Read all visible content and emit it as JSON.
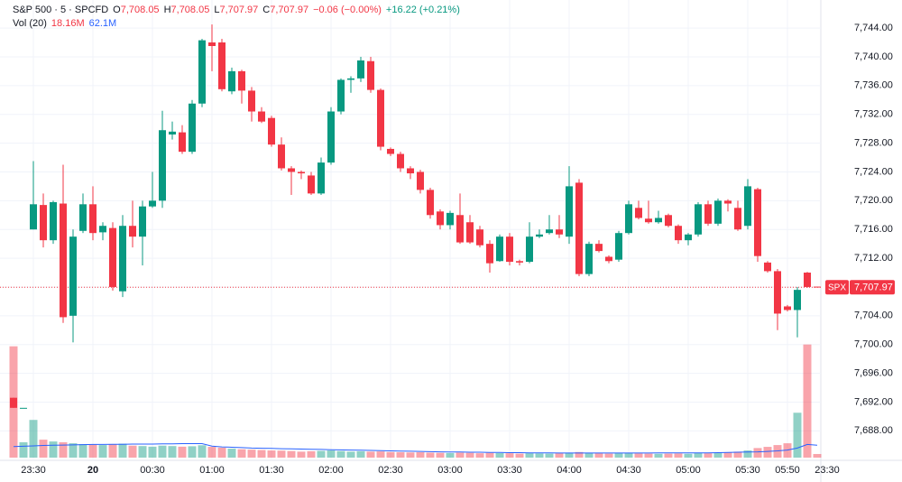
{
  "chart_data": {
    "type": "candlestick",
    "header": {
      "symbol": "S&P 500 · 5 · SPCFD",
      "ohlc": [
        {
          "key": "O",
          "value": "7,708.05"
        },
        {
          "key": "H",
          "value": "7,708.05"
        },
        {
          "key": "L",
          "value": "7,707.97"
        },
        {
          "key": "C",
          "value": "7,707.97"
        }
      ],
      "change": "−0.06 (−0.00%)",
      "change_ext": "+16.22 (+0.21%)",
      "vol_label": "Vol (20)",
      "vol_value": "18.16M",
      "vol_ma": "62.1M"
    },
    "last_price": {
      "symbol": "SPX",
      "value": 7707.97,
      "label": "7,707.97"
    },
    "up_color": "#089981",
    "down_color": "#f23645",
    "open": [
      7692.6,
      7691.2,
      7716,
      7719.4,
      7714.5,
      7719.6,
      7704,
      7715.8,
      7719.5,
      7715.6,
      7716.2,
      7707.4,
      7716.5,
      7715,
      7719.2,
      7720,
      7729.2,
      7729.5,
      7726.8,
      7733.5,
      7742,
      7742,
      7735.2,
      7738,
      7735.3,
      7732.4,
      7731.5,
      7727.8,
      7724.5,
      7724,
      7723.5,
      7721,
      7725.3,
      7732.4,
      7736.8,
      7737,
      7739.4,
      7735.4,
      7727.2,
      7726.5,
      7724.5,
      7724,
      7721.5,
      7718.5,
      7716.6,
      7718,
      7717,
      7716,
      7714,
      7711.6,
      7715,
      7711.6,
      7711.5,
      7715,
      7715.5,
      7716,
      7715,
      7722.5,
      7709.8,
      7714,
      7712.2,
      7711.8,
      7715.5,
      7719,
      7717.5,
      7717,
      7718,
      7716.5,
      7714.5,
      7715.3,
      7719.5,
      7716.8,
      7720,
      7719,
      7716.5,
      7721.6,
      7711.4,
      7710.2,
      7705.3,
      7704.8,
      7710,
      7708.05
    ],
    "high": [
      7692.6,
      7691.2,
      7725.5,
      7721,
      7720,
      7725,
      7716,
      7721,
      7722,
      7717,
      7717,
      7718,
      7720,
      7720,
      7724,
      7732.5,
      7731,
      7730.5,
      7734,
      7742.5,
      7744.5,
      7742.5,
      7738.5,
      7738.2,
      7735.8,
      7733,
      7731.8,
      7728.8,
      7724.8,
      7724.2,
      7724,
      7726,
      7733,
      7737,
      7737.3,
      7740,
      7740,
      7735.6,
      7727.4,
      7726.8,
      7724.8,
      7724.3,
      7721.8,
      7718.8,
      7718.6,
      7721,
      7718,
      7716.5,
      7714.5,
      7715.3,
      7715.5,
      7711.8,
      7717,
      7716,
      7718,
      7718,
      7724.8,
      7723,
      7714.3,
      7714.5,
      7712.4,
      7715.8,
      7720,
      7720,
      7720,
      7718.6,
      7718.2,
      7716.7,
      7715.5,
      7719.8,
      7720,
      7720.3,
      7720.2,
      7720,
      7723,
      7721.8,
      7711.6,
      7710.5,
      7705.5,
      7708,
      7710.1,
      7708.05
    ],
    "low": [
      7691.2,
      7691.2,
      7716,
      7713.5,
      7714,
      7703,
      7700.3,
      7715.5,
      7714.5,
      7714.5,
      7707.5,
      7706.6,
      7713.5,
      7711,
      7719,
      7719,
      7728.5,
      7726.5,
      7726.5,
      7733,
      7738,
      7735.2,
      7734.8,
      7733.5,
      7731,
      7730.8,
      7727.5,
      7724.2,
      7720.8,
      7723,
      7720.8,
      7720.8,
      7725,
      7732,
      7735,
      7736.5,
      7735,
      7727,
      7726.2,
      7724,
      7723,
      7721,
      7717.5,
      7716,
      7716,
      7714,
      7714,
      7713.5,
      7710,
      7711.5,
      7711,
      7711,
      7711.3,
      7714.8,
      7715.3,
      7714.8,
      7714,
      7709.5,
      7709.5,
      7712.8,
      7711.3,
      7711.5,
      7715.3,
      7717.4,
      7716.8,
      7716.8,
      7716.3,
      7714,
      7713.8,
      7715,
      7716.5,
      7716.5,
      7718.5,
      7715.8,
      7716,
      7711.5,
      7710,
      7702,
      7704.6,
      7701,
      7707.9,
      7707.97
    ],
    "close": [
      7691.2,
      7691.2,
      7719.5,
      7714.5,
      7719.8,
      7703.8,
      7715,
      7719.5,
      7715.5,
      7716.5,
      7708,
      7716.5,
      7715,
      7719.2,
      7720,
      7729.8,
      7729.6,
      7726.8,
      7733.5,
      7742.3,
      7741.5,
      7735.5,
      7738,
      7735.3,
      7732.4,
      7731,
      7727.8,
      7724.5,
      7724,
      7723.8,
      7721,
      7725.3,
      7732.4,
      7736.8,
      7737,
      7739.5,
      7735.4,
      7727.5,
      7726.5,
      7724.5,
      7723.8,
      7721.5,
      7718,
      7716.6,
      7718.3,
      7714.2,
      7714.2,
      7713.8,
      7711.3,
      7715,
      7711.5,
      7711.4,
      7715,
      7715.3,
      7716,
      7715.3,
      7722,
      7709.8,
      7714,
      7713,
      7711.6,
      7715.5,
      7719.5,
      7717.6,
      7717,
      7717.6,
      7716.5,
      7714.5,
      7715.3,
      7719.5,
      7716.8,
      7720,
      7719.6,
      7716,
      7722,
      7712.3,
      7710.2,
      7704.3,
      7704.8,
      7707.6,
      7708,
      7707.97
    ],
    "volume": {
      "axis": "y2",
      "up_color": "rgba(8,153,129,0.45)",
      "down_color": "rgba(242,54,69,0.45)",
      "values": [
        558,
        77,
        189,
        90,
        81,
        77,
        72,
        68,
        65,
        63,
        67,
        70,
        60,
        58,
        55,
        60,
        58,
        55,
        57,
        62,
        54,
        50,
        45,
        42,
        40,
        38,
        36,
        35,
        33,
        30,
        32,
        34,
        36,
        33,
        30,
        32,
        30,
        31,
        28,
        27,
        26,
        27,
        25,
        24,
        23,
        25,
        24,
        22,
        24,
        23,
        22,
        20,
        22,
        21,
        20,
        22,
        25,
        28,
        24,
        22,
        20,
        22,
        23,
        21,
        20,
        19,
        20,
        21,
        19,
        24,
        22,
        25,
        27,
        30,
        36,
        48,
        54,
        63,
        72,
        225,
        567,
        18.16
      ]
    },
    "volume_ma": {
      "axis": "y2",
      "color": "#2962ff",
      "values": [
        55,
        57,
        59,
        61,
        62,
        63,
        64,
        65,
        66,
        66,
        67,
        67,
        68,
        68,
        68,
        69,
        69,
        70,
        70,
        70,
        58,
        54,
        52,
        50,
        48,
        47,
        46,
        45,
        44,
        43,
        42,
        41,
        40,
        39,
        38,
        37,
        36,
        35,
        34,
        33,
        32,
        31,
        30,
        29,
        28,
        28,
        27,
        27,
        26,
        26,
        25,
        25,
        24,
        24,
        24,
        23,
        23,
        23,
        23,
        23,
        23,
        23,
        23,
        23,
        23,
        24,
        24,
        24,
        24,
        24,
        24,
        25,
        26,
        27,
        28,
        29,
        31,
        34,
        38,
        48,
        66,
        62.1
      ]
    },
    "xlim": [
      -1.3636,
      81.3636
    ],
    "xticks": [
      {
        "value": 2,
        "label": "23:30"
      },
      {
        "value": 8,
        "label": "20"
      },
      {
        "value": 14,
        "label": "00:30"
      },
      {
        "value": 20,
        "label": "01:00"
      },
      {
        "value": 26,
        "label": "01:30"
      },
      {
        "value": 32,
        "label": "02:00"
      },
      {
        "value": 38,
        "label": "02:30"
      },
      {
        "value": 44,
        "label": "03:00"
      },
      {
        "value": 50,
        "label": "03:30"
      },
      {
        "value": 56,
        "label": "04:00"
      },
      {
        "value": 62,
        "label": "04:30"
      },
      {
        "value": 68,
        "label": "05:00"
      },
      {
        "value": 74,
        "label": "05:30"
      },
      {
        "value": 78,
        "label": "05:50"
      },
      {
        "value": 82,
        "label": "23:30"
      }
    ],
    "ylim": [
      7683.9,
      7747.9
    ],
    "yticks": [
      {
        "value": 7744,
        "label": "7,744.00"
      },
      {
        "value": 7740,
        "label": "7,740.00"
      },
      {
        "value": 7736,
        "label": "7,736.00"
      },
      {
        "value": 7732,
        "label": "7,732.00"
      },
      {
        "value": 7728,
        "label": "7,728.00"
      },
      {
        "value": 7724,
        "label": "7,724.00"
      },
      {
        "value": 7720,
        "label": "7,720.00"
      },
      {
        "value": 7716,
        "label": "7,716.00"
      },
      {
        "value": 7712,
        "label": "7,712.00"
      },
      {
        "value": 7708,
        "label": "7,708.00"
      },
      {
        "value": 7704,
        "label": "7,704.00"
      },
      {
        "value": 7700,
        "label": "7,700.00"
      },
      {
        "value": 7696,
        "label": "7,696.00"
      },
      {
        "value": 7692,
        "label": "7,692.00"
      },
      {
        "value": 7688,
        "label": "7,688.00"
      }
    ],
    "y2lim": [
      0,
      570
    ],
    "grid": true
  }
}
